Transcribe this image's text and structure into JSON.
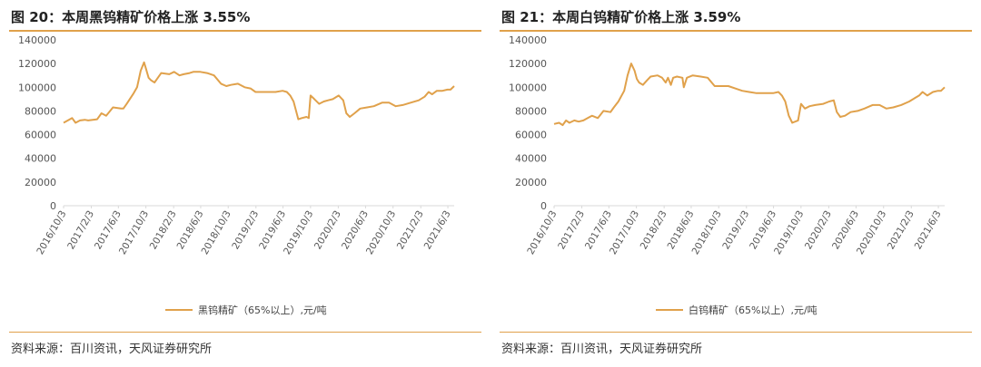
{
  "figures": [
    {
      "title": "图 20：本周黑钨精矿价格上涨 3.55%",
      "source": "资料来源：百川资讯，天风证券研究所",
      "chart_data": {
        "type": "line",
        "title": "图 20：本周黑钨精矿价格上涨 3.55%",
        "xlabel": "",
        "ylabel": "",
        "ylim": [
          0,
          140000
        ],
        "yticks": [
          0,
          20000,
          40000,
          60000,
          80000,
          100000,
          120000,
          140000
        ],
        "xticks": [
          "2016/10/3",
          "2017/2/3",
          "2017/6/3",
          "2017/10/3",
          "2018/2/3",
          "2018/6/3",
          "2018/10/3",
          "2019/2/3",
          "2019/6/3",
          "2019/10/3",
          "2020/2/3",
          "2020/6/3",
          "2020/10/3",
          "2021/2/3",
          "2021/6/3"
        ],
        "grid": false,
        "legend_position": "bottom",
        "color": "#e0a14b",
        "series": [
          {
            "name": "黑钨精矿（65%以上）,元/吨",
            "x": [
              "2016-10-03",
              "2016-11-10",
              "2016-11-25",
              "2016-12-15",
              "2017-01-05",
              "2017-01-20",
              "2017-03-01",
              "2017-03-20",
              "2017-04-10",
              "2017-05-10",
              "2017-06-15",
              "2017-06-25",
              "2017-07-10",
              "2017-08-10",
              "2017-08-25",
              "2017-09-10",
              "2017-09-25",
              "2017-10-03",
              "2017-10-15",
              "2017-10-25",
              "2017-11-10",
              "2017-11-25",
              "2017-12-10",
              "2018-01-15",
              "2018-02-05",
              "2018-03-01",
              "2018-03-20",
              "2018-04-15",
              "2018-05-01",
              "2018-06-01",
              "2018-07-01",
              "2018-08-01",
              "2018-09-01",
              "2018-09-25",
              "2018-10-15",
              "2018-11-15",
              "2018-12-15",
              "2019-01-10",
              "2019-02-01",
              "2019-03-01",
              "2019-04-01",
              "2019-05-01",
              "2019-06-01",
              "2019-06-20",
              "2019-07-05",
              "2019-07-20",
              "2019-08-10",
              "2019-08-25",
              "2019-09-15",
              "2019-09-25",
              "2019-10-03",
              "2019-10-20",
              "2019-11-10",
              "2019-12-01",
              "2019-12-20",
              "2020-01-10",
              "2020-02-05",
              "2020-02-25",
              "2020-03-10",
              "2020-03-25",
              "2020-04-15",
              "2020-05-10",
              "2020-06-10",
              "2020-07-10",
              "2020-08-15",
              "2020-09-15",
              "2020-10-15",
              "2020-11-15",
              "2020-12-20",
              "2021-01-25",
              "2021-02-20",
              "2021-03-10",
              "2021-03-25",
              "2021-04-15",
              "2021-05-10",
              "2021-06-01",
              "2021-06-15",
              "2021-07-01"
            ],
            "values": [
              70000,
              74000,
              70000,
              72000,
              72500,
              72000,
              73000,
              78000,
              76000,
              83000,
              82000,
              82000,
              86000,
              95000,
              100000,
              114000,
              121000,
              116000,
              108000,
              106000,
              104000,
              108000,
              112000,
              111000,
              113000,
              110000,
              111000,
              112000,
              113000,
              113000,
              112000,
              110000,
              103000,
              101000,
              102000,
              103000,
              100000,
              99000,
              96000,
              96000,
              96000,
              96000,
              97000,
              96000,
              93000,
              88000,
              73000,
              74000,
              75000,
              74000,
              93000,
              90000,
              86000,
              88000,
              89000,
              90000,
              93000,
              89000,
              78000,
              75000,
              78000,
              82000,
              83000,
              84000,
              87000,
              87000,
              84000,
              85000,
              87000,
              89000,
              92000,
              96000,
              94000,
              97000,
              97000,
              98000,
              98000,
              101000
            ]
          }
        ]
      }
    },
    {
      "title": "图 21：本周白钨精矿价格上涨 3.59%",
      "source": "资料来源：百川资讯，天风证券研究所",
      "chart_data": {
        "type": "line",
        "title": "图 21：本周白钨精矿价格上涨 3.59%",
        "xlabel": "",
        "ylabel": "",
        "ylim": [
          0,
          140000
        ],
        "yticks": [
          0,
          20000,
          40000,
          60000,
          80000,
          100000,
          120000,
          140000
        ],
        "xticks": [
          "2016/10/3",
          "2017/2/3",
          "2017/6/3",
          "2017/10/3",
          "2018/2/3",
          "2018/6/3",
          "2018/10/3",
          "2019/2/3",
          "2019/6/3",
          "2019/10/3",
          "2020/2/3",
          "2020/6/3",
          "2020/10/3",
          "2021/2/3",
          "2021/6/3"
        ],
        "grid": false,
        "legend_position": "bottom",
        "color": "#e0a14b",
        "series": [
          {
            "name": "白钨精矿（65%以上）,元/吨",
            "x": [
              "2016-10-03",
              "2016-10-25",
              "2016-11-10",
              "2016-11-25",
              "2016-12-10",
              "2017-01-01",
              "2017-01-20",
              "2017-02-10",
              "2017-03-01",
              "2017-03-20",
              "2017-04-15",
              "2017-05-10",
              "2017-06-10",
              "2017-06-25",
              "2017-07-15",
              "2017-08-10",
              "2017-08-25",
              "2017-09-10",
              "2017-09-25",
              "2017-10-05",
              "2017-10-15",
              "2017-11-01",
              "2017-11-20",
              "2017-12-05",
              "2018-01-05",
              "2018-01-25",
              "2018-02-10",
              "2018-02-20",
              "2018-03-05",
              "2018-03-15",
              "2018-04-01",
              "2018-04-25",
              "2018-05-01",
              "2018-05-15",
              "2018-06-10",
              "2018-07-15",
              "2018-08-15",
              "2018-09-15",
              "2018-10-15",
              "2018-11-15",
              "2018-12-15",
              "2019-01-15",
              "2019-02-15",
              "2019-03-20",
              "2019-05-01",
              "2019-06-01",
              "2019-06-25",
              "2019-07-10",
              "2019-07-25",
              "2019-08-10",
              "2019-08-25",
              "2019-09-20",
              "2019-10-03",
              "2019-10-20",
              "2019-11-10",
              "2019-12-05",
              "2020-01-10",
              "2020-02-05",
              "2020-02-25",
              "2020-03-10",
              "2020-03-25",
              "2020-04-15",
              "2020-05-10",
              "2020-06-10",
              "2020-07-10",
              "2020-08-15",
              "2020-09-15",
              "2020-10-15",
              "2020-11-15",
              "2020-12-20",
              "2021-01-25",
              "2021-02-20",
              "2021-03-10",
              "2021-03-25",
              "2021-04-15",
              "2021-05-10",
              "2021-06-01",
              "2021-06-15",
              "2021-07-01"
            ],
            "values": [
              69000,
              70000,
              68000,
              72000,
              70000,
              72000,
              71000,
              72000,
              74000,
              76000,
              74000,
              80000,
              79000,
              83000,
              88000,
              97000,
              110000,
              120000,
              114000,
              107000,
              104000,
              102000,
              106000,
              109000,
              110000,
              108000,
              104000,
              108000,
              102000,
              108000,
              109000,
              108000,
              100000,
              108000,
              110000,
              109000,
              108000,
              101000,
              101000,
              101000,
              99000,
              97000,
              96000,
              95000,
              95000,
              95000,
              96000,
              93000,
              88000,
              76000,
              70000,
              72000,
              86000,
              82000,
              84000,
              85000,
              86000,
              88000,
              89000,
              79000,
              75000,
              76000,
              79000,
              80000,
              82000,
              85000,
              85000,
              82000,
              83000,
              85000,
              88000,
              91000,
              93000,
              96000,
              93000,
              96000,
              97000,
              97000,
              100000
            ]
          }
        ]
      }
    }
  ]
}
